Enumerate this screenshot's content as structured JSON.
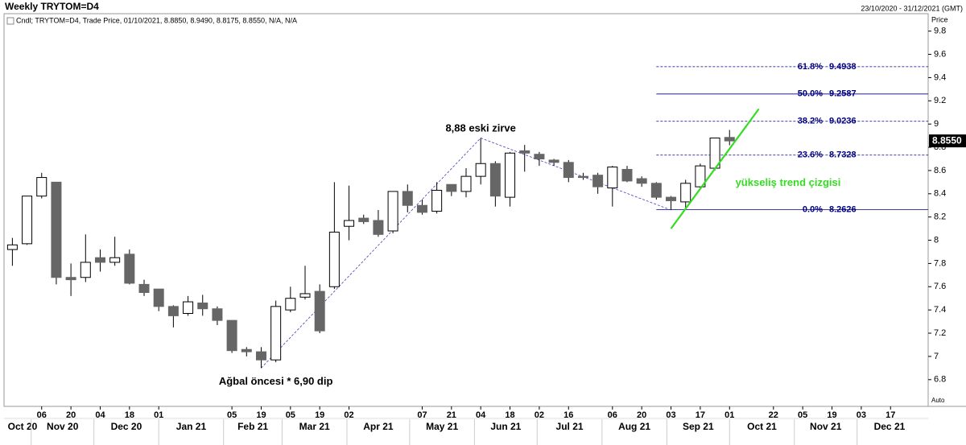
{
  "chart_data": {
    "type": "candlestick",
    "title": "Weekly TRYTOM=D4",
    "range_label": "23/10/2020 - 31/12/2021 (GMT)",
    "legend": "Cndl; TRYTOM=D4, Trade Price, 01/10/2021, 8.8850, 8.9490, 8.8175, 8.8550, N/A, N/A",
    "y_axis_label": "Price",
    "scale_label": "Auto",
    "up_color": "#ffffff",
    "down_color": "#666666",
    "x": [
      "2020-10-23",
      "2020-10-30",
      "2020-11-06",
      "2020-11-13",
      "2020-11-20",
      "2020-11-27",
      "2020-12-04",
      "2020-12-11",
      "2020-12-18",
      "2020-12-25",
      "2021-01-01",
      "2021-01-08",
      "2021-01-15",
      "2021-01-22",
      "2021-01-29",
      "2021-02-05",
      "2021-02-12",
      "2021-02-19",
      "2021-02-26",
      "2021-03-05",
      "2021-03-12",
      "2021-03-19",
      "2021-03-26",
      "2021-04-02",
      "2021-04-09",
      "2021-04-16",
      "2021-04-23",
      "2021-04-30",
      "2021-05-07",
      "2021-05-14",
      "2021-05-21",
      "2021-05-28",
      "2021-06-04",
      "2021-06-11",
      "2021-06-18",
      "2021-06-25",
      "2021-07-02",
      "2021-07-09",
      "2021-07-16",
      "2021-07-23",
      "2021-07-30",
      "2021-08-06",
      "2021-08-13",
      "2021-08-20",
      "2021-08-27",
      "2021-09-03",
      "2021-09-10",
      "2021-09-17",
      "2021-09-24",
      "2021-10-01"
    ],
    "open": [
      7.92,
      7.97,
      8.38,
      8.5,
      7.68,
      7.68,
      7.85,
      7.81,
      7.88,
      7.62,
      7.58,
      7.43,
      7.37,
      7.46,
      7.41,
      7.31,
      7.06,
      7.04,
      6.97,
      7.4,
      7.51,
      7.56,
      7.6,
      8.12,
      8.19,
      8.17,
      8.08,
      8.42,
      8.3,
      8.25,
      8.48,
      8.42,
      8.55,
      8.66,
      8.37,
      8.77,
      8.74,
      8.69,
      8.67,
      8.55,
      8.56,
      8.45,
      8.61,
      8.53,
      8.49,
      8.37,
      8.33,
      8.46,
      8.62,
      8.885
    ],
    "high": [
      8.02,
      8.38,
      8.58,
      8.5,
      7.8,
      8.05,
      7.92,
      8.03,
      7.92,
      7.66,
      7.58,
      7.44,
      7.52,
      7.53,
      7.43,
      7.31,
      7.08,
      7.08,
      7.48,
      7.6,
      7.78,
      7.62,
      8.5,
      8.47,
      8.22,
      8.26,
      8.42,
      8.48,
      8.35,
      8.5,
      8.48,
      8.62,
      8.88,
      8.68,
      8.76,
      8.82,
      8.76,
      8.7,
      8.69,
      8.58,
      8.58,
      8.64,
      8.64,
      8.55,
      8.5,
      8.38,
      8.52,
      8.66,
      8.88,
      8.949
    ],
    "low": [
      7.78,
      7.96,
      8.36,
      7.62,
      7.52,
      7.64,
      7.73,
      7.78,
      7.62,
      7.52,
      7.39,
      7.25,
      7.35,
      7.35,
      7.27,
      7.03,
      7.0,
      6.9,
      6.95,
      7.38,
      7.49,
      7.2,
      7.58,
      8.0,
      8.14,
      8.03,
      8.06,
      8.24,
      8.22,
      8.23,
      8.38,
      8.37,
      8.48,
      8.29,
      8.29,
      8.59,
      8.64,
      8.64,
      8.5,
      8.52,
      8.4,
      8.29,
      8.5,
      8.46,
      8.35,
      8.26,
      8.28,
      8.45,
      8.6,
      8.8175
    ],
    "close": [
      7.96,
      8.38,
      8.54,
      7.68,
      7.66,
      7.81,
      7.81,
      7.85,
      7.63,
      7.55,
      7.43,
      7.35,
      7.47,
      7.41,
      7.31,
      7.05,
      7.04,
      6.97,
      7.43,
      7.5,
      7.54,
      7.22,
      8.07,
      8.17,
      8.16,
      8.05,
      8.42,
      8.3,
      8.24,
      8.43,
      8.42,
      8.55,
      8.66,
      8.38,
      8.75,
      8.75,
      8.7,
      8.67,
      8.54,
      8.54,
      8.46,
      8.63,
      8.51,
      8.49,
      8.37,
      8.34,
      8.49,
      8.64,
      8.88,
      8.855
    ],
    "last_price": {
      "value": 8.855,
      "label": "8.8550"
    },
    "xlim": [
      "2020-10-19",
      "2022-01-04"
    ],
    "xticks": [
      {
        "value": "2020-11-06",
        "label": "06"
      },
      {
        "value": "2020-11-20",
        "label": "20"
      },
      {
        "value": "2020-12-04",
        "label": "04"
      },
      {
        "value": "2020-12-18",
        "label": "18"
      },
      {
        "value": "2021-01-01",
        "label": "01"
      },
      {
        "value": "2021-02-05",
        "label": "05"
      },
      {
        "value": "2021-02-19",
        "label": "19"
      },
      {
        "value": "2021-03-05",
        "label": "05"
      },
      {
        "value": "2021-03-19",
        "label": "19"
      },
      {
        "value": "2021-04-02",
        "label": "02"
      },
      {
        "value": "2021-05-07",
        "label": "07"
      },
      {
        "value": "2021-05-21",
        "label": "21"
      },
      {
        "value": "2021-06-04",
        "label": "04"
      },
      {
        "value": "2021-06-18",
        "label": "18"
      },
      {
        "value": "2021-07-02",
        "label": "02"
      },
      {
        "value": "2021-07-16",
        "label": "16"
      },
      {
        "value": "2021-08-06",
        "label": "06"
      },
      {
        "value": "2021-08-20",
        "label": "20"
      },
      {
        "value": "2021-09-03",
        "label": "03"
      },
      {
        "value": "2021-09-17",
        "label": "17"
      },
      {
        "value": "2021-10-01",
        "label": "01"
      },
      {
        "value": "2021-10-22",
        "label": "22"
      },
      {
        "value": "2021-11-05",
        "label": "05"
      },
      {
        "value": "2021-11-19",
        "label": "19"
      },
      {
        "value": "2021-12-03",
        "label": "03"
      },
      {
        "value": "2021-12-17",
        "label": "17"
      }
    ],
    "month_ticks": [
      {
        "value": "2020-10-01",
        "label": "Oct 20"
      },
      {
        "value": "2020-11-01",
        "label": "Nov 20"
      },
      {
        "value": "2020-12-01",
        "label": "Dec 20"
      },
      {
        "value": "2021-01-01",
        "label": "Jan 21"
      },
      {
        "value": "2021-02-01",
        "label": "Feb 21"
      },
      {
        "value": "2021-03-01",
        "label": "Mar 21"
      },
      {
        "value": "2021-04-01",
        "label": "Apr 21"
      },
      {
        "value": "2021-05-01",
        "label": "May 21"
      },
      {
        "value": "2021-06-01",
        "label": "Jun 21"
      },
      {
        "value": "2021-07-01",
        "label": "Jul 21"
      },
      {
        "value": "2021-08-01",
        "label": "Aug 21"
      },
      {
        "value": "2021-09-01",
        "label": "Sep 21"
      },
      {
        "value": "2021-10-01",
        "label": "Oct 21"
      },
      {
        "value": "2021-11-01",
        "label": "Nov 21"
      },
      {
        "value": "2021-12-01",
        "label": "Dec 21"
      }
    ],
    "ylim": [
      6.57,
      9.95
    ],
    "yticks": [
      6.8,
      7,
      7.2,
      7.4,
      7.6,
      7.8,
      8,
      8.2,
      8.4,
      8.6,
      8.8,
      9,
      9.2,
      9.4,
      9.6,
      9.8
    ],
    "fibonacci": {
      "color": "#000080",
      "x_start": "2021-08-27",
      "levels": [
        {
          "label": "0.0%",
          "value": 8.2626,
          "style": "solid"
        },
        {
          "label": "23.6%",
          "value": 8.7328,
          "style": "dashed"
        },
        {
          "label": "38.2%",
          "value": 9.0236,
          "style": "dashed"
        },
        {
          "label": "50.0%",
          "value": 9.2587,
          "style": "solid"
        },
        {
          "label": "61.8%",
          "value": 9.4938,
          "style": "dashed"
        }
      ]
    },
    "zigzag": {
      "color": "#4040c0",
      "x": [
        "2021-02-19",
        "2021-06-04",
        "2021-09-03"
      ],
      "values": [
        6.9,
        8.88,
        8.26
      ]
    },
    "trend_line": {
      "color": "#33dd22",
      "x": [
        "2021-09-03",
        "2021-10-15"
      ],
      "values": [
        8.1,
        9.13
      ]
    },
    "annotations": [
      {
        "text": "8,88 eski zirve",
        "x": "2021-06-04",
        "y": 8.96,
        "color": "#000000"
      },
      {
        "text": "Ağbal öncesi * 6,90 dip",
        "x": "2021-02-26",
        "y": 6.78,
        "color": "#000000"
      },
      {
        "text": "yükseliş trend çizgisi",
        "x": "2021-10-29",
        "y": 8.49,
        "color": "#33dd22"
      }
    ]
  }
}
